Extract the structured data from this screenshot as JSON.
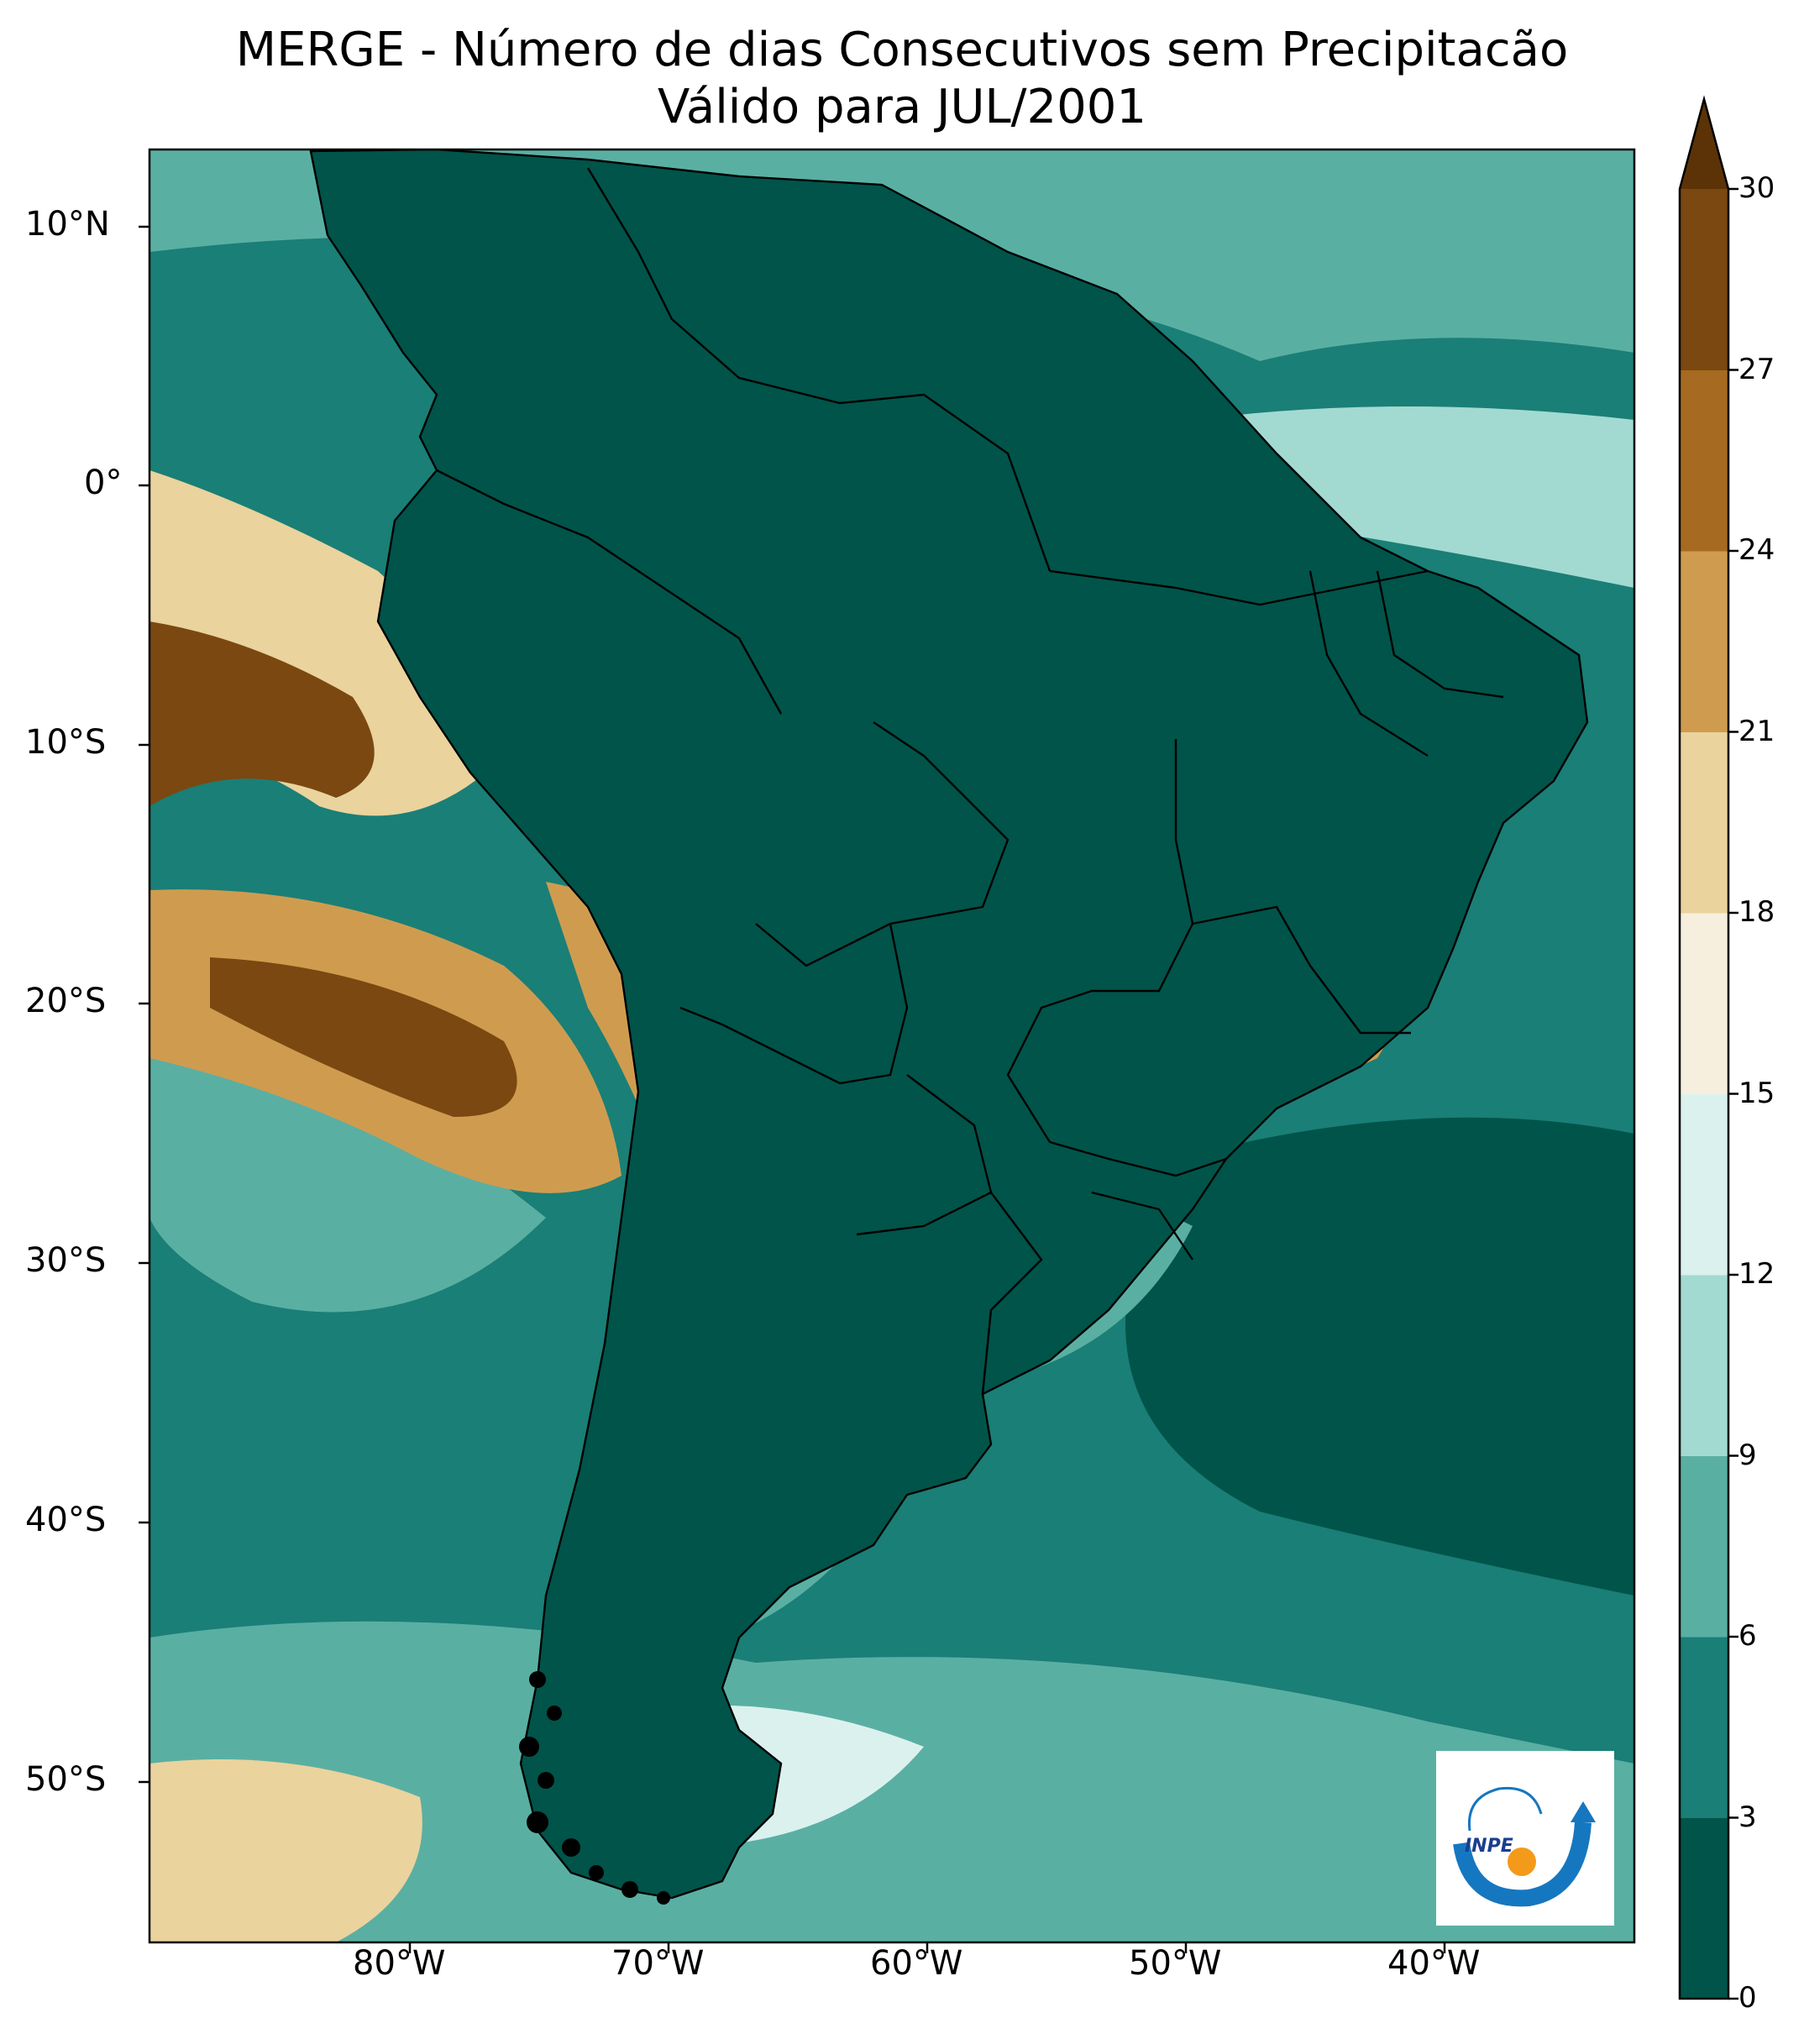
{
  "title": {
    "line1": "MERGE - Número de dias Consecutivos sem Precipitacão",
    "line2": "Válido para JUL/2001"
  },
  "map": {
    "lat_labels": [
      "10°N",
      "0°",
      "10°S",
      "20°S",
      "30°S",
      "40°S",
      "50°S"
    ],
    "lon_labels": [
      "80°W",
      "70°W",
      "60°W",
      "50°W",
      "40°W"
    ],
    "extent": {
      "lon_min": -89.5,
      "lon_max": -31.5,
      "lat_min": -56.5,
      "lat_max": 13.5
    }
  },
  "colorbar": {
    "ticks": [
      "0",
      "3",
      "6",
      "9",
      "12",
      "15",
      "18",
      "21",
      "24",
      "27",
      "30"
    ],
    "colors": [
      "#01544a",
      "#1a7f76",
      "#5aafa3",
      "#a2dad1",
      "#dbf1ee",
      "#f7efde",
      "#ead39d",
      "#cf9c4f",
      "#a66b20",
      "#7b4811"
    ],
    "extend_color": "#5c3306",
    "extend": "max"
  },
  "logo": {
    "text": "INPE",
    "colors": {
      "blue": "#1577c0",
      "orange": "#f39a1a"
    }
  }
}
